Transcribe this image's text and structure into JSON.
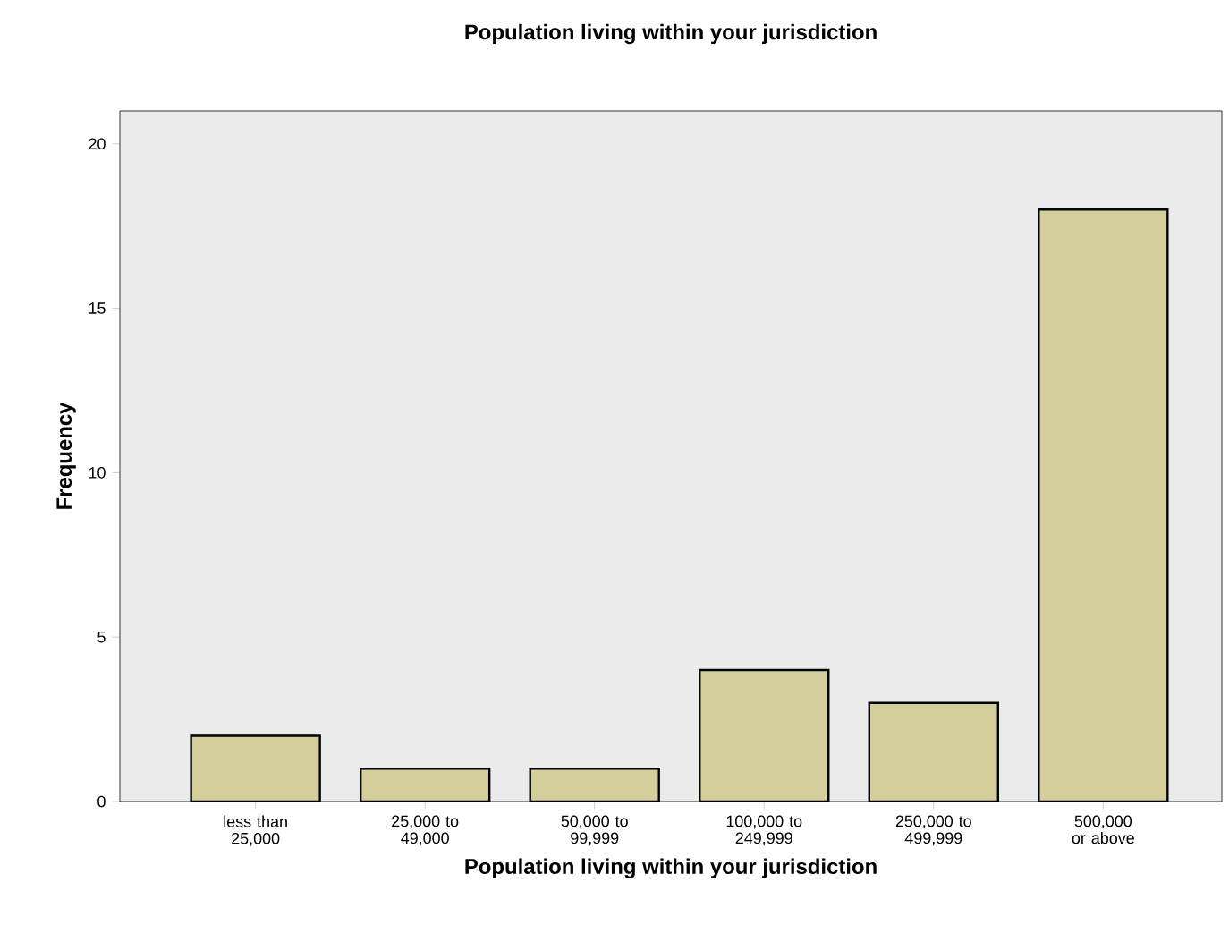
{
  "chart_data": {
    "type": "bar",
    "title": "Population living within your jurisdiction",
    "xlabel": "Population living within your jurisdiction",
    "ylabel": "Frequency",
    "categories": [
      "less than 25,000",
      "25,000 to 49,000",
      "50,000 to 99,999",
      "100,000 to 249,999",
      "250,000 to 499,999",
      "500,000 or above"
    ],
    "values": [
      2,
      1,
      1,
      4,
      3,
      18
    ],
    "color": "#d3ce9b",
    "ylim": [
      0,
      21
    ],
    "yticks": [
      0,
      5,
      10,
      15,
      20
    ]
  }
}
